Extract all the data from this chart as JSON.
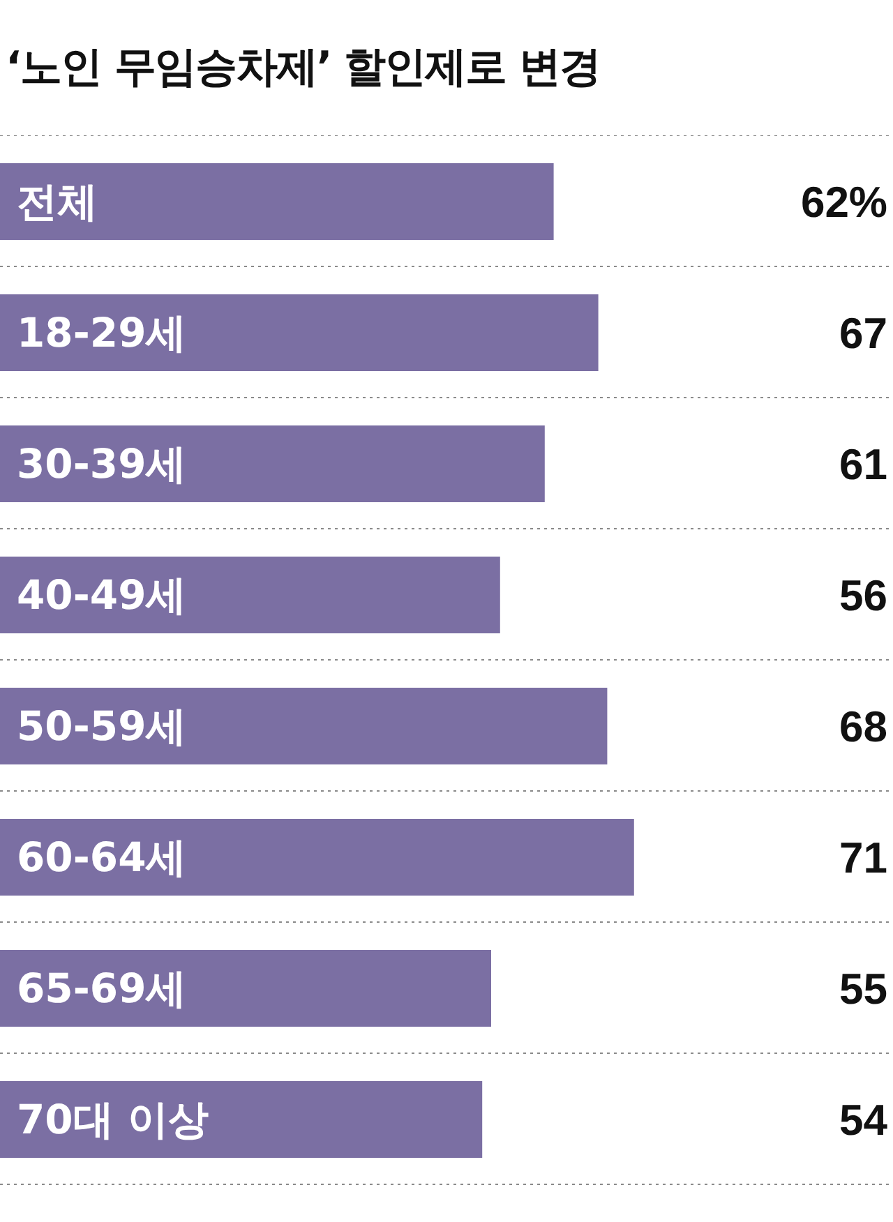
{
  "chart_data": {
    "type": "bar",
    "orientation": "horizontal",
    "title": "‘노인 무임승차제’ 할인제로 변경",
    "categories": [
      "전체",
      "18-29세",
      "30-39세",
      "40-49세",
      "50-59세",
      "60-64세",
      "65-69세",
      "70대 이상"
    ],
    "values": [
      62,
      67,
      61,
      56,
      68,
      71,
      55,
      54
    ],
    "value_labels": [
      "62%",
      "67",
      "61",
      "56",
      "68",
      "71",
      "55",
      "54"
    ],
    "color": "#7b6fa3",
    "xlim": [
      0,
      100
    ],
    "tick_labels": "y",
    "grid": true
  }
}
